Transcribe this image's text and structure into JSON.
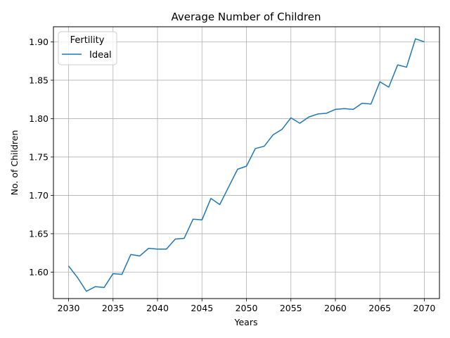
{
  "chart_data": {
    "type": "line",
    "title": "Average Number of Children",
    "xlabel": "Years",
    "ylabel": "No. of Children",
    "xlim": [
      2028.3,
      2071.7
    ],
    "ylim": [
      1.5655,
      1.9197
    ],
    "xticks": [
      2030,
      2035,
      2040,
      2045,
      2050,
      2055,
      2060,
      2065,
      2070
    ],
    "yticks": [
      1.6,
      1.65,
      1.7,
      1.75,
      1.8,
      1.85,
      1.9
    ],
    "ytick_labels": [
      "1.60",
      "1.65",
      "1.70",
      "1.75",
      "1.80",
      "1.85",
      "1.90"
    ],
    "grid": true,
    "legend": {
      "title": "Fertility",
      "position": "upper-left"
    },
    "series": [
      {
        "name": "Ideal",
        "color": "#1f77b4",
        "x": [
          2030,
          2031,
          2032,
          2033,
          2034,
          2035,
          2036,
          2037,
          2038,
          2039,
          2040,
          2041,
          2042,
          2043,
          2044,
          2045,
          2046,
          2047,
          2048,
          2049,
          2050,
          2051,
          2052,
          2053,
          2054,
          2055,
          2056,
          2057,
          2058,
          2059,
          2060,
          2061,
          2062,
          2063,
          2064,
          2065,
          2066,
          2067,
          2068,
          2069,
          2070
        ],
        "y": [
          1.608,
          1.593,
          1.575,
          1.581,
          1.58,
          1.598,
          1.597,
          1.623,
          1.621,
          1.631,
          1.63,
          1.63,
          1.643,
          1.644,
          1.669,
          1.668,
          1.696,
          1.688,
          1.711,
          1.734,
          1.738,
          1.761,
          1.764,
          1.779,
          1.786,
          1.801,
          1.794,
          1.802,
          1.806,
          1.807,
          1.812,
          1.813,
          1.812,
          1.82,
          1.819,
          1.848,
          1.841,
          1.87,
          1.867,
          1.904,
          1.9
        ]
      }
    ]
  }
}
